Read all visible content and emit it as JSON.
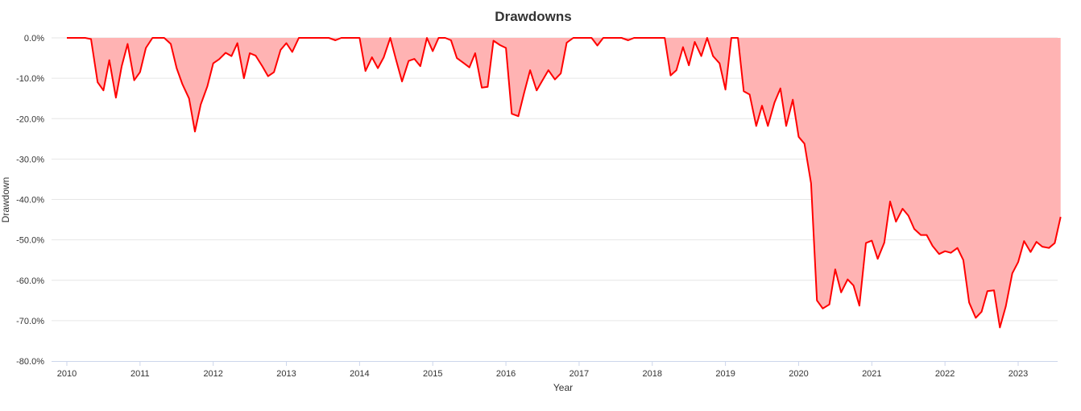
{
  "chart_data": {
    "type": "area",
    "title": "Drawdowns",
    "xlabel": "Year",
    "ylabel": "Drawdown",
    "ylim": [
      -80,
      0
    ],
    "yticks": [
      0,
      -10,
      -20,
      -30,
      -40,
      -50,
      -60,
      -70,
      -80
    ],
    "ytick_labels": [
      "0.0%",
      "-10.0%",
      "-20.0%",
      "-30.0%",
      "-40.0%",
      "-50.0%",
      "-60.0%",
      "-70.0%",
      "-80.0%"
    ],
    "xlim": [
      2010.0,
      2023.75
    ],
    "xticks": [
      2010,
      2011,
      2012,
      2013,
      2014,
      2015,
      2016,
      2017,
      2018,
      2019,
      2020,
      2021,
      2022,
      2023
    ],
    "xtick_labels": [
      "2010",
      "2011",
      "2012",
      "2013",
      "2014",
      "2015",
      "2016",
      "2017",
      "2018",
      "2019",
      "2020",
      "2021",
      "2022",
      "2023"
    ],
    "grid": true,
    "legend": false,
    "line_color": "#ff0000",
    "fill_color": "#ffb3b3",
    "series": [
      {
        "x": [
          2010.0,
          2010.08,
          2010.17,
          2010.25,
          2010.33,
          2010.42,
          2010.5,
          2010.58,
          2010.67,
          2010.75,
          2010.83,
          2010.92,
          2011.0,
          2011.08,
          2011.17,
          2011.25,
          2011.33,
          2011.42,
          2011.5,
          2011.58,
          2011.67,
          2011.75,
          2011.83,
          2011.92,
          2012.0,
          2012.08,
          2012.17,
          2012.25,
          2012.33,
          2012.42,
          2012.5,
          2012.58,
          2012.67,
          2012.75,
          2012.83,
          2012.92,
          2013.0,
          2013.08,
          2013.17,
          2013.25,
          2013.33,
          2013.42,
          2013.5,
          2013.58,
          2013.67,
          2013.75,
          2013.83,
          2013.92,
          2014.0,
          2014.08,
          2014.17,
          2014.25,
          2014.33,
          2014.42,
          2014.5,
          2014.58,
          2014.67,
          2014.75,
          2014.83,
          2014.92,
          2015.0,
          2015.08,
          2015.17,
          2015.25,
          2015.33,
          2015.42,
          2015.5,
          2015.58,
          2015.67,
          2015.75,
          2015.83,
          2015.92,
          2016.0,
          2016.08,
          2016.17,
          2016.25,
          2016.33,
          2016.42,
          2016.5,
          2016.58,
          2016.67,
          2016.75,
          2016.83,
          2016.92,
          2017.0,
          2017.08,
          2017.17,
          2017.25,
          2017.33,
          2017.42,
          2017.5,
          2017.58,
          2017.67,
          2017.75,
          2017.83,
          2017.92,
          2018.0,
          2018.08,
          2018.17,
          2018.25,
          2018.33,
          2018.42,
          2018.5,
          2018.58,
          2018.67,
          2018.75,
          2018.83,
          2018.92,
          2019.0,
          2019.08,
          2019.17,
          2019.25,
          2019.33,
          2019.42,
          2019.5,
          2019.58,
          2019.67,
          2019.75,
          2019.83,
          2019.92,
          2020.0,
          2020.08,
          2020.17,
          2020.25,
          2020.33,
          2020.42,
          2020.5,
          2020.58,
          2020.67,
          2020.75,
          2020.83,
          2020.92,
          2021.0,
          2021.08,
          2021.17,
          2021.25,
          2021.33,
          2021.42,
          2021.5,
          2021.58,
          2021.67,
          2021.75,
          2021.83,
          2021.92,
          2022.0,
          2022.08,
          2022.17,
          2022.25,
          2022.33,
          2022.42,
          2022.5,
          2022.58,
          2022.67,
          2022.75,
          2022.83,
          2022.92,
          2023.0,
          2023.08,
          2023.17,
          2023.25,
          2023.33,
          2023.42,
          2023.5,
          2023.58
        ],
        "values": [
          0.0,
          0.0,
          0.0,
          0.0,
          -0.3,
          -11.0,
          -13.0,
          -5.5,
          -14.8,
          -7.0,
          -1.5,
          -10.5,
          -8.5,
          -2.5,
          0.0,
          0.0,
          0.0,
          -1.5,
          -7.5,
          -11.5,
          -15.0,
          -23.2,
          -16.5,
          -12.0,
          -6.3,
          -5.3,
          -3.7,
          -4.5,
          -1.3,
          -10.0,
          -3.8,
          -4.4,
          -7.0,
          -9.5,
          -8.5,
          -3.0,
          -1.3,
          -3.5,
          0.0,
          0.0,
          0.0,
          0.0,
          0.0,
          0.0,
          -0.6,
          0.0,
          0.0,
          0.0,
          0.0,
          -8.2,
          -4.8,
          -7.5,
          -4.8,
          0.0,
          -5.5,
          -10.8,
          -5.7,
          -5.2,
          -7.0,
          0.0,
          -3.3,
          0.0,
          0.0,
          -0.6,
          -5.0,
          -6.2,
          -7.3,
          -3.8,
          -12.3,
          -12.1,
          -0.7,
          -1.8,
          -2.5,
          -18.8,
          -19.4,
          -13.5,
          -8.0,
          -13.0,
          -10.5,
          -8.0,
          -10.3,
          -8.8,
          -1.2,
          0.0,
          0.0,
          0.0,
          0.0,
          -1.9,
          0.0,
          0.0,
          0.0,
          0.0,
          -0.6,
          0.0,
          0.0,
          0.0,
          0.0,
          0.0,
          0.0,
          -9.3,
          -8.0,
          -2.3,
          -6.8,
          -1.0,
          -4.5,
          0.0,
          -4.5,
          -6.3,
          -12.8,
          0.0,
          0.0,
          -13.2,
          -14.0,
          -21.8,
          -16.8,
          -21.8,
          -16.0,
          -12.5,
          -21.8,
          -15.3,
          -24.5,
          -26.2,
          -36.0,
          -65.0,
          -67.0,
          -66.0,
          -57.3,
          -63.0,
          -59.8,
          -61.3,
          -66.3,
          -50.8,
          -50.2,
          -54.7,
          -50.7,
          -40.5,
          -45.5,
          -42.3,
          -44.0,
          -47.3,
          -48.8,
          -48.8,
          -51.5,
          -53.5,
          -52.8,
          -53.2,
          -52.0,
          -55.0,
          -65.5,
          -69.3,
          -67.8,
          -62.7,
          -62.5,
          -71.7,
          -66.5,
          -58.3,
          -55.5,
          -50.3,
          -53.0,
          -50.5,
          -51.7,
          -52.0,
          -50.8,
          -44.3
        ]
      }
    ]
  }
}
